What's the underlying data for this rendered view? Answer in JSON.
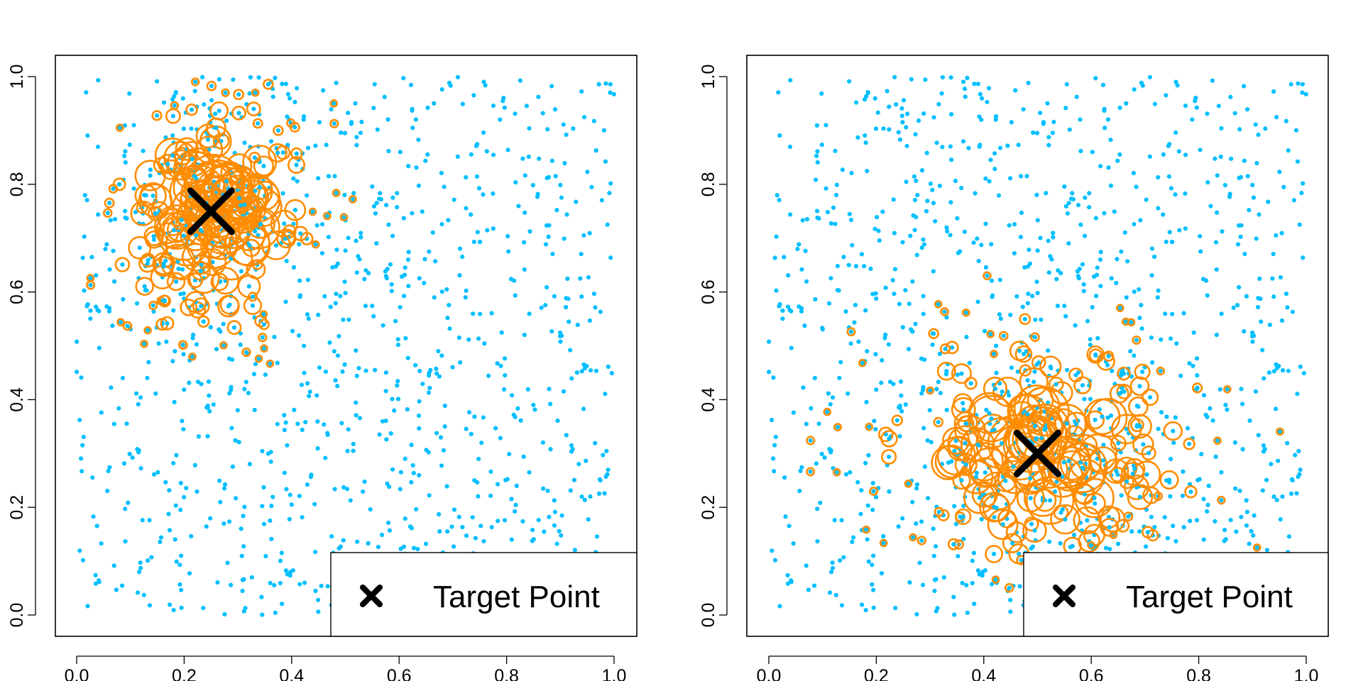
{
  "colors": {
    "background_points": "#00BFFF",
    "weighted_points": "#FF8C00",
    "target": "#000000"
  },
  "chart_data": [
    {
      "type": "scatter",
      "xlim": [
        0,
        1
      ],
      "ylim": [
        0,
        1
      ],
      "x_ticks": [
        "0.0",
        "0.2",
        "0.4",
        "0.6",
        "0.8",
        "1.0"
      ],
      "y_ticks": [
        "0.0",
        "0.2",
        "0.4",
        "0.6",
        "0.8",
        "1.0"
      ],
      "grid": false,
      "legend_position": "bottom-right",
      "legend_entries": [
        "Target Point"
      ],
      "target": [
        0.25,
        0.75
      ],
      "n_background": 1000,
      "weighted_points_cloud_spread": [
        0.11,
        0.12
      ]
    },
    {
      "type": "scatter",
      "xlim": [
        0,
        1
      ],
      "ylim": [
        0,
        1
      ],
      "x_ticks": [
        "0.0",
        "0.2",
        "0.4",
        "0.6",
        "0.8",
        "1.0"
      ],
      "y_ticks": [
        "0.0",
        "0.2",
        "0.4",
        "0.6",
        "0.8",
        "1.0"
      ],
      "grid": false,
      "legend_position": "bottom-right",
      "legend_entries": [
        "Target Point"
      ],
      "target": [
        0.5,
        0.3
      ],
      "n_background": 1000,
      "weighted_points_cloud_spread": [
        0.16,
        0.12
      ]
    }
  ]
}
